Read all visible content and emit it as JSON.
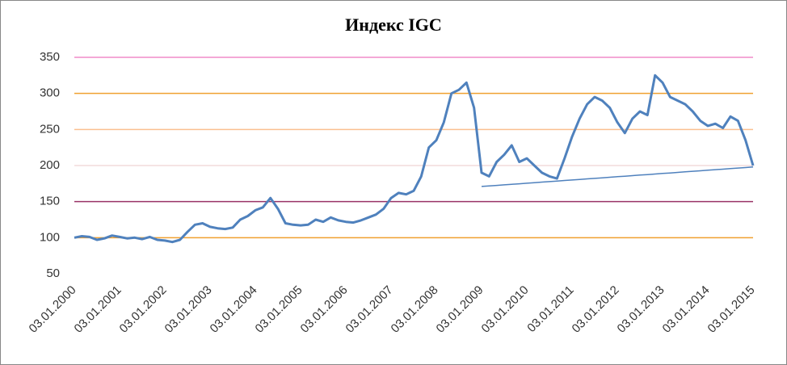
{
  "chart_data": {
    "type": "line",
    "title": "Индекс IGC",
    "categories": [
      "03.01.2000",
      null,
      null,
      null,
      null,
      null,
      "03.01.2001",
      null,
      null,
      null,
      null,
      null,
      "03.01.2002",
      null,
      null,
      null,
      null,
      null,
      "03.01.2003",
      null,
      null,
      null,
      null,
      null,
      "03.01.2004",
      null,
      null,
      null,
      null,
      null,
      "03.01.2005",
      null,
      null,
      null,
      null,
      null,
      "03.01.2006",
      null,
      null,
      null,
      null,
      null,
      "03.01.2007",
      null,
      null,
      null,
      null,
      null,
      "03.01.2008",
      null,
      null,
      null,
      null,
      null,
      "03.01.2009",
      null,
      null,
      null,
      null,
      null,
      "03.01.2010",
      null,
      null,
      null,
      null,
      null,
      "03.01.2011",
      null,
      null,
      null,
      null,
      null,
      "03.01.2012",
      null,
      null,
      null,
      null,
      null,
      "03.01.2013",
      null,
      null,
      null,
      null,
      null,
      "03.01.2014",
      null,
      null,
      null,
      null,
      null,
      "03.01.2015"
    ],
    "series": [
      {
        "color": "#4f81bd",
        "width": 3,
        "values": [
          100,
          102,
          101,
          97,
          99,
          103,
          101,
          99,
          100,
          98,
          101,
          97,
          96,
          94,
          97,
          108,
          118,
          120,
          115,
          113,
          112,
          114,
          125,
          130,
          138,
          142,
          155,
          140,
          120,
          118,
          117,
          118,
          125,
          122,
          128,
          124,
          122,
          121,
          124,
          128,
          132,
          140,
          155,
          162,
          160,
          165,
          185,
          225,
          235,
          260,
          300,
          305,
          315,
          280,
          190,
          185,
          205,
          215,
          228,
          205,
          210,
          200,
          190,
          185,
          182,
          210,
          240,
          265,
          285,
          295,
          290,
          280,
          260,
          245,
          265,
          275,
          270,
          325,
          315,
          295,
          290,
          285,
          275,
          262,
          255,
          258,
          252,
          268,
          262,
          235,
          200
        ]
      },
      {
        "color": "#4f81bd",
        "width": 1.5,
        "values": [
          null,
          null,
          null,
          null,
          null,
          null,
          null,
          null,
          null,
          null,
          null,
          null,
          null,
          null,
          null,
          null,
          null,
          null,
          null,
          null,
          null,
          null,
          null,
          null,
          null,
          null,
          null,
          null,
          null,
          null,
          null,
          null,
          null,
          null,
          null,
          null,
          null,
          null,
          null,
          null,
          null,
          null,
          null,
          null,
          null,
          null,
          null,
          null,
          null,
          null,
          null,
          null,
          null,
          null,
          171,
          171.75,
          172.5,
          173.25,
          174,
          174.75,
          175.5,
          176.25,
          177,
          177.75,
          178.5,
          179.25,
          180,
          180.75,
          181.5,
          182.25,
          183,
          183.75,
          184.5,
          185.25,
          186,
          186.75,
          187.5,
          188.25,
          189,
          189.75,
          190.5,
          191.25,
          192,
          192.75,
          193.5,
          194.25,
          195,
          195.75,
          196.5,
          197.25,
          198
        ]
      }
    ],
    "ylim": [
      50,
      350
    ],
    "yticks": [
      50,
      100,
      150,
      200,
      250,
      300,
      350
    ],
    "grid": true,
    "grid_colors": [
      null,
      "#f0a030",
      "#993366",
      "#f2dcdb",
      "#fac090",
      "#f0a030",
      "#f08cc8"
    ]
  }
}
